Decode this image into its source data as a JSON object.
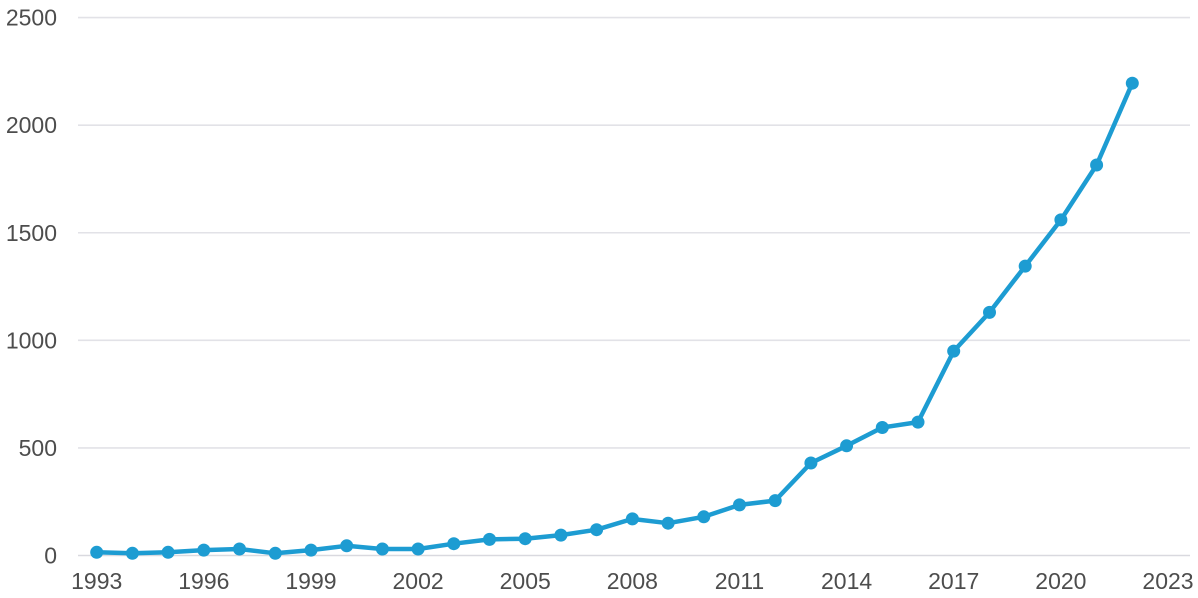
{
  "chart": {
    "line_color": "#1d9cd2",
    "marker_color": "#1d9cd2",
    "grid_color": "#e2e2e7",
    "zero_grid_color": "#d9d9df",
    "label_color": "#4d4d4d",
    "background_color": "#ffffff"
  },
  "chart_data": {
    "type": "line",
    "title": "",
    "xlabel": "",
    "ylabel": "",
    "legend": "none",
    "grid": "horizontal",
    "marker": "circle",
    "x": [
      1993,
      1994,
      1995,
      1996,
      1997,
      1998,
      1999,
      2000,
      2001,
      2002,
      2003,
      2004,
      2005,
      2006,
      2007,
      2008,
      2009,
      2010,
      2011,
      2012,
      2013,
      2014,
      2015,
      2016,
      2017,
      2018,
      2019,
      2020,
      2021,
      2022
    ],
    "values": [
      15,
      10,
      15,
      25,
      30,
      10,
      25,
      45,
      30,
      30,
      55,
      75,
      78,
      95,
      120,
      170,
      150,
      180,
      235,
      255,
      430,
      510,
      595,
      620,
      950,
      1130,
      1345,
      1560,
      1815,
      2195
    ],
    "x_ticks": [
      1993,
      1996,
      1999,
      2002,
      2005,
      2008,
      2011,
      2014,
      2017,
      2020,
      2023
    ],
    "y_ticks": [
      0,
      500,
      1000,
      1500,
      2000,
      2500
    ],
    "xlim": [
      1993,
      2023
    ],
    "ylim": [
      0,
      2500
    ]
  }
}
